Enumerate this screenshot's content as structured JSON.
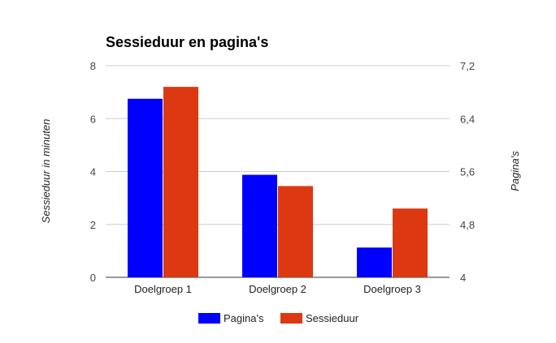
{
  "chart_data": {
    "type": "bar",
    "title": "Sessieduur en pagina's",
    "categories": [
      "Doelgroep 1",
      "Doelgroep 2",
      "Doelgroep 3"
    ],
    "series": [
      {
        "name": "Pagina's",
        "values": [
          6.7,
          5.55,
          4.45
        ],
        "axis": "right",
        "color": "#0000ff"
      },
      {
        "name": "Sessieduur",
        "values": [
          7.2,
          3.45,
          2.6
        ],
        "axis": "left",
        "color": "#dc3912"
      }
    ],
    "ylabel_left": "Sessieduur in minuten",
    "ylabel_right": "Pagina's",
    "ylim_left": [
      0,
      8
    ],
    "ylim_right": [
      4,
      7.2
    ],
    "yticks_left": [
      "0",
      "2",
      "4",
      "6",
      "8"
    ],
    "yticks_right": [
      "4",
      "4,8",
      "5,6",
      "6,4",
      "7,2"
    ],
    "grid": true,
    "legend_position": "bottom"
  }
}
